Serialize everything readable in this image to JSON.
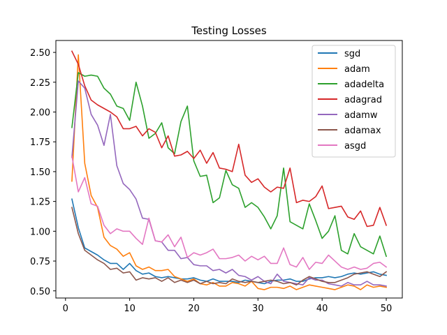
{
  "chart_data": {
    "type": "line",
    "title": "Testing Losses",
    "xlabel": "",
    "ylabel": "",
    "xlim": [
      -1.5,
      52.5
    ],
    "ylim": [
      0.44,
      2.6
    ],
    "xticks": [
      0,
      10,
      20,
      30,
      40,
      50
    ],
    "yticks": [
      0.5,
      0.75,
      1.0,
      1.25,
      1.5,
      1.75,
      2.0,
      2.25,
      2.5
    ],
    "grid": false,
    "legend_position": "top-right",
    "x": [
      1,
      2,
      3,
      4,
      5,
      6,
      7,
      8,
      9,
      10,
      11,
      12,
      13,
      14,
      15,
      16,
      17,
      18,
      19,
      20,
      21,
      22,
      23,
      24,
      25,
      26,
      27,
      28,
      29,
      30,
      31,
      32,
      33,
      34,
      35,
      36,
      37,
      38,
      39,
      40,
      41,
      42,
      43,
      44,
      45,
      46,
      47,
      48,
      49,
      50
    ],
    "series": [
      {
        "name": "sgd",
        "color": "#1f77b4",
        "values": [
          1.27,
          1.03,
          0.86,
          0.83,
          0.8,
          0.76,
          0.73,
          0.73,
          0.68,
          0.73,
          0.67,
          0.64,
          0.65,
          0.62,
          0.61,
          0.62,
          0.61,
          0.6,
          0.6,
          0.61,
          0.59,
          0.58,
          0.6,
          0.58,
          0.58,
          0.58,
          0.57,
          0.59,
          0.58,
          0.57,
          0.56,
          0.58,
          0.59,
          0.59,
          0.6,
          0.58,
          0.58,
          0.6,
          0.61,
          0.61,
          0.62,
          0.61,
          0.62,
          0.64,
          0.65,
          0.64,
          0.65,
          0.66,
          0.64,
          0.63
        ]
      },
      {
        "name": "adam",
        "color": "#ff7f0e",
        "values": [
          1.42,
          2.48,
          1.57,
          1.3,
          1.2,
          0.95,
          0.88,
          0.85,
          0.79,
          0.82,
          0.71,
          0.68,
          0.7,
          0.67,
          0.67,
          0.68,
          0.62,
          0.6,
          0.58,
          0.6,
          0.56,
          0.55,
          0.57,
          0.54,
          0.54,
          0.57,
          0.56,
          0.54,
          0.58,
          0.52,
          0.51,
          0.53,
          0.53,
          0.52,
          0.54,
          0.51,
          0.53,
          0.55,
          0.54,
          0.53,
          0.52,
          0.51,
          0.53,
          0.55,
          0.54,
          0.51,
          0.55,
          0.53,
          0.54,
          0.53
        ]
      },
      {
        "name": "adadelta",
        "color": "#2ca02c",
        "values": [
          1.87,
          2.33,
          2.3,
          2.31,
          2.3,
          2.2,
          2.15,
          2.05,
          2.03,
          1.93,
          2.25,
          2.05,
          1.78,
          1.82,
          1.91,
          1.7,
          1.65,
          1.92,
          2.05,
          1.59,
          1.46,
          1.47,
          1.24,
          1.28,
          1.51,
          1.39,
          1.36,
          1.2,
          1.24,
          1.2,
          1.12,
          1.02,
          1.13,
          1.53,
          1.08,
          1.05,
          1.02,
          1.23,
          1.09,
          0.94,
          1.0,
          1.13,
          0.84,
          0.81,
          0.98,
          0.87,
          0.84,
          0.81,
          0.96,
          0.79
        ]
      },
      {
        "name": "adagrad",
        "color": "#d62728",
        "values": [
          2.51,
          2.4,
          2.22,
          2.1,
          2.06,
          2.03,
          2.0,
          1.96,
          1.86,
          1.86,
          1.88,
          1.8,
          1.86,
          1.83,
          1.7,
          1.8,
          1.63,
          1.64,
          1.67,
          1.61,
          1.68,
          1.57,
          1.66,
          1.53,
          1.52,
          1.5,
          1.73,
          1.47,
          1.41,
          1.44,
          1.37,
          1.33,
          1.37,
          1.36,
          1.53,
          1.24,
          1.26,
          1.25,
          1.29,
          1.38,
          1.19,
          1.2,
          1.21,
          1.12,
          1.1,
          1.17,
          1.04,
          1.05,
          1.2,
          1.05
        ]
      },
      {
        "name": "adamw",
        "color": "#9467bd",
        "values": [
          1.62,
          2.26,
          2.2,
          1.98,
          1.89,
          1.72,
          1.98,
          1.55,
          1.4,
          1.35,
          1.27,
          1.11,
          1.1,
          0.92,
          0.91,
          0.84,
          0.84,
          0.77,
          0.78,
          0.72,
          0.71,
          0.71,
          0.67,
          0.68,
          0.65,
          0.68,
          0.63,
          0.62,
          0.59,
          0.62,
          0.58,
          0.56,
          0.64,
          0.58,
          0.57,
          0.56,
          0.55,
          0.61,
          0.59,
          0.59,
          0.56,
          0.55,
          0.54,
          0.57,
          0.55,
          0.55,
          0.58,
          0.55,
          0.55,
          0.54
        ]
      },
      {
        "name": "adamax",
        "color": "#8c564b",
        "values": [
          1.2,
          0.98,
          0.84,
          0.8,
          0.76,
          0.73,
          0.68,
          0.69,
          0.65,
          0.66,
          0.59,
          0.61,
          0.6,
          0.61,
          0.58,
          0.61,
          0.57,
          0.59,
          0.57,
          0.59,
          0.56,
          0.58,
          0.56,
          0.57,
          0.56,
          0.6,
          0.58,
          0.57,
          0.58,
          0.57,
          0.58,
          0.59,
          0.58,
          0.56,
          0.57,
          0.55,
          0.59,
          0.62,
          0.6,
          0.58,
          0.57,
          0.57,
          0.59,
          0.61,
          0.64,
          0.65,
          0.66,
          0.64,
          0.62,
          0.66
        ]
      },
      {
        "name": "asgd",
        "color": "#e377c2",
        "values": [
          1.63,
          1.33,
          1.45,
          1.23,
          1.21,
          1.05,
          0.98,
          1.02,
          1.0,
          1.0,
          0.94,
          0.89,
          1.11,
          0.92,
          0.91,
          0.97,
          0.87,
          0.95,
          0.78,
          0.82,
          0.8,
          0.82,
          0.85,
          0.77,
          0.77,
          0.78,
          0.8,
          0.75,
          0.79,
          0.76,
          0.79,
          0.73,
          0.73,
          0.86,
          0.72,
          0.7,
          0.78,
          0.68,
          0.74,
          0.73,
          0.8,
          0.75,
          0.7,
          0.68,
          0.7,
          0.68,
          0.69,
          0.73,
          0.74,
          0.7
        ]
      }
    ]
  }
}
